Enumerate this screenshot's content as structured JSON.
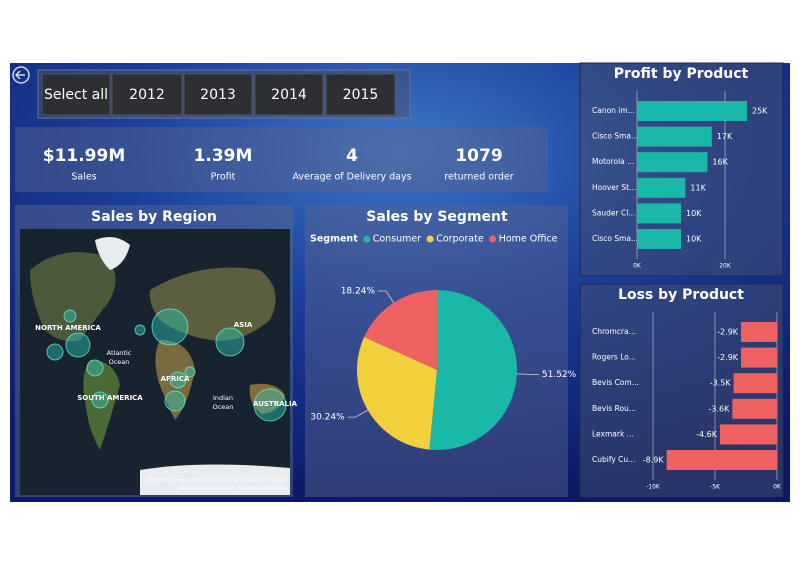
{
  "slicer": {
    "items": [
      "Select all",
      "2012",
      "2013",
      "2014",
      "2015"
    ]
  },
  "kpis": [
    {
      "value": "$11.99M",
      "label": "Sales"
    },
    {
      "value": "1.39M",
      "label": "Profit"
    },
    {
      "value": 4,
      "label": "Average of Delivery days"
    },
    {
      "value": 1079,
      "label": "returned order"
    }
  ],
  "map": {
    "title": "Sales by Region",
    "labels": [
      "NORTH AMERICA",
      "Atlantic",
      "Ocean",
      "ASIA",
      "AFRICA",
      "SOUTH AMERICA",
      "Indian",
      "Ocean",
      "AUSTRALIA"
    ],
    "credit": [
      "Earthstar Geographics SIO, © 2022 TomTom, © 2022",
      "Microsoft Corporation, © OpenStreetMap"
    ]
  },
  "chart_data": [
    {
      "type": "pie",
      "title": "Sales by Segment",
      "legend_title": "Segment",
      "categories": [
        "Consumer",
        "Corporate",
        "Home Office"
      ],
      "values": [
        51.52,
        30.24,
        18.24
      ],
      "value_labels": [
        "51.52%",
        "30.24%",
        "18.24%"
      ],
      "colors": [
        "#1ab8a6",
        "#f2d03b",
        "#f06262"
      ]
    },
    {
      "type": "bar",
      "title": "Profit by Product",
      "categories": [
        "Canon im...",
        "Cisco Sma...",
        "Motorola ...",
        "Hoover St...",
        "Sauder Cl...",
        "Cisco Sma..."
      ],
      "values": [
        25000,
        17000,
        16000,
        11000,
        10000,
        10000
      ],
      "value_labels": [
        "25K",
        "17K",
        "16K",
        "11K",
        "10K",
        "10K"
      ],
      "color": "#1ab8a6",
      "xlim": [
        0,
        30000
      ],
      "xticks": [
        {
          "value": 0,
          "label": "0K"
        },
        {
          "value": 20000,
          "label": "20K"
        }
      ]
    },
    {
      "type": "bar",
      "title": "Loss by Product",
      "categories": [
        "Chromcra...",
        "Rogers Lo...",
        "Bevis Com...",
        "Bevis Rou...",
        "Lexmark ...",
        "Cubify Cu..."
      ],
      "values": [
        -2900,
        -2900,
        -3500,
        -3600,
        -4600,
        -8900
      ],
      "value_labels": [
        "-2.9K",
        "-2.9K",
        "-3.5K",
        "-3.6K",
        "-4.6K",
        "-8.9K"
      ],
      "color": "#f06262",
      "xlim": [
        -10000,
        0
      ],
      "xticks": [
        {
          "value": -10000,
          "label": "-10K"
        },
        {
          "value": -5000,
          "label": "-5K"
        },
        {
          "value": 0,
          "label": "0K"
        }
      ]
    }
  ]
}
